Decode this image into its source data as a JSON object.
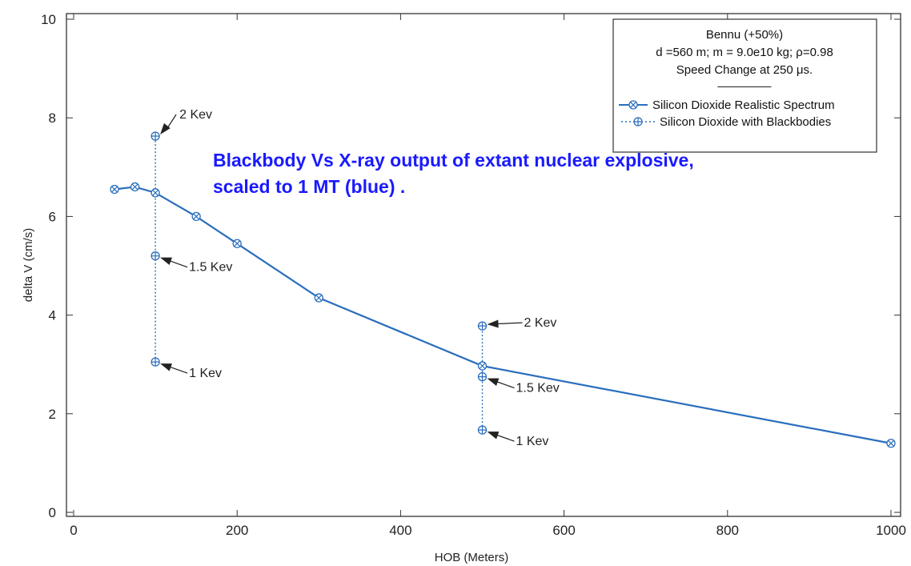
{
  "chart_data": {
    "type": "line",
    "xlabel": "HOB (Meters)",
    "ylabel": "delta V (cm/s)",
    "xlim": [
      0,
      1000
    ],
    "ylim": [
      0,
      10
    ],
    "x_ticks": [
      0,
      200,
      400,
      600,
      800,
      1000
    ],
    "y_ticks": [
      0,
      2,
      4,
      6,
      8,
      10
    ],
    "grid": false,
    "legend_position": "top-right",
    "legend_title_lines": [
      "Bennu (+50%)",
      "d =560 m;   m = 9.0e10 kg;  ρ=0.98",
      "Speed Change at 250 μs.",
      "________"
    ],
    "series": [
      {
        "name": "Silicon Dioxide Realistic Spectrum",
        "style": "solid",
        "marker": "circle-x",
        "x": [
          50,
          75,
          100,
          150,
          200,
          300,
          500,
          1000
        ],
        "y": [
          6.55,
          6.6,
          6.48,
          6.0,
          5.45,
          4.35,
          2.97,
          1.4
        ]
      },
      {
        "name": "Silicon Dioxide with Blackbodies",
        "style": "dotted",
        "marker": "circle-plus",
        "groups": [
          {
            "x": [
              100,
              100,
              100
            ],
            "y": [
              3.05,
              5.2,
              7.63
            ]
          },
          {
            "x": [
              500,
              500,
              500
            ],
            "y": [
              1.67,
              2.75,
              3.78
            ]
          }
        ]
      }
    ],
    "annotations": [
      {
        "text": "2 Kev",
        "x": 100,
        "y": 7.63
      },
      {
        "text": "1.5 Kev",
        "x": 100,
        "y": 5.2
      },
      {
        "text": "1 Kev",
        "x": 100,
        "y": 3.05
      },
      {
        "text": "2 Kev",
        "x": 500,
        "y": 3.78
      },
      {
        "text": "1.5 Kev",
        "x": 500,
        "y": 2.75
      },
      {
        "text": "1 Kev",
        "x": 500,
        "y": 1.67
      }
    ],
    "headline": "Blackbody Vs X-ray output of extant nuclear explosive, scaled to 1 MT (blue) .",
    "colors": {
      "line": "#2a6ebd",
      "marker": "#2a6ebd",
      "axis": "#333333",
      "headline": "#1a1aff"
    }
  }
}
